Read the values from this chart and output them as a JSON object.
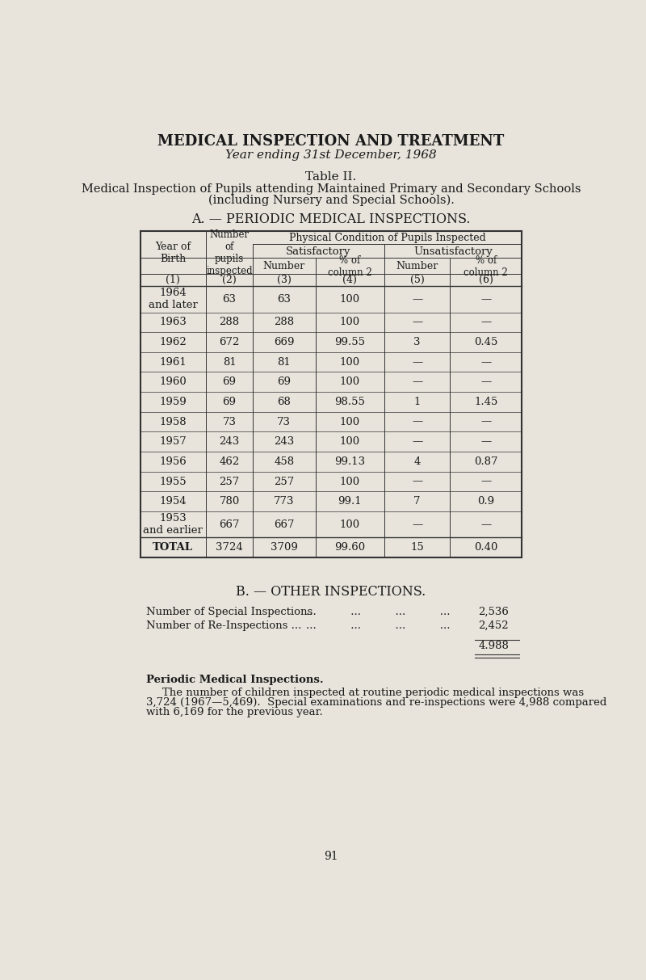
{
  "title1": "MEDICAL INSPECTION AND TREATMENT",
  "title2": "Year ending 31st December, 1968",
  "table_title": "Table II.",
  "table_subtitle1": "Medical Inspection of Pupils attending Maintained Primary and Secondary Schools",
  "table_subtitle2": "(including Nursery and Special Schools).",
  "section_a_title": "A. — PERIODIC MEDICAL INSPECTIONS.",
  "rows": [
    {
      "col1": "1964\nand later",
      "col2": "63",
      "col3": "63",
      "col4": "100",
      "col5": "—",
      "col6": "—"
    },
    {
      "col1": "1963",
      "col2": "288",
      "col3": "288",
      "col4": "100",
      "col5": "—",
      "col6": "—"
    },
    {
      "col1": "1962",
      "col2": "672",
      "col3": "669",
      "col4": "99.55",
      "col5": "3",
      "col6": "0.45"
    },
    {
      "col1": "1961",
      "col2": "81",
      "col3": "81",
      "col4": "100",
      "col5": "—",
      "col6": "—"
    },
    {
      "col1": "1960",
      "col2": "69",
      "col3": "69",
      "col4": "100",
      "col5": "—",
      "col6": "—"
    },
    {
      "col1": "1959",
      "col2": "69",
      "col3": "68",
      "col4": "98.55",
      "col5": "1",
      "col6": "1.45"
    },
    {
      "col1": "1958",
      "col2": "73",
      "col3": "73",
      "col4": "100",
      "col5": "—",
      "col6": "—"
    },
    {
      "col1": "1957",
      "col2": "243",
      "col3": "243",
      "col4": "100",
      "col5": "—",
      "col6": "—"
    },
    {
      "col1": "1956",
      "col2": "462",
      "col3": "458",
      "col4": "99.13",
      "col5": "4",
      "col6": "0.87"
    },
    {
      "col1": "1955",
      "col2": "257",
      "col3": "257",
      "col4": "100",
      "col5": "—",
      "col6": "—"
    },
    {
      "col1": "1954",
      "col2": "780",
      "col3": "773",
      "col4": "99.1",
      "col5": "7",
      "col6": "0.9"
    },
    {
      "col1": "1953\nand earlier",
      "col2": "667",
      "col3": "667",
      "col4": "100",
      "col5": "—",
      "col6": "—"
    }
  ],
  "total_row": {
    "col1": "TOTAL",
    "col2": "3724",
    "col3": "3709",
    "col4": "99.60",
    "col5": "15",
    "col6": "0.40"
  },
  "section_b_title": "B. — OTHER INSPECTIONS.",
  "special_inspections_label": "Number of Special Inspections",
  "special_inspections_dots": "...          ...          ...          ...",
  "special_inspections_value": "2,536",
  "reinspections_label": "Number of Re-Inspections ...",
  "reinspections_dots": "...          ...          ...          ...",
  "reinspections_value": "2,452",
  "total_other": "4.988",
  "para_title": "Periodic Medical Inspections.",
  "para_text1": "The number of children inspected at routine periodic medical inspections was",
  "para_text2": "3,724 (1967—5,469).  Special examinations and re-inspections were 4,988 compared",
  "para_text3": "with 6,169 for the previous year.",
  "page_number": "91",
  "bg_color": "#e8e4dc",
  "text_color": "#1a1a1a",
  "table_line_color": "#333333"
}
